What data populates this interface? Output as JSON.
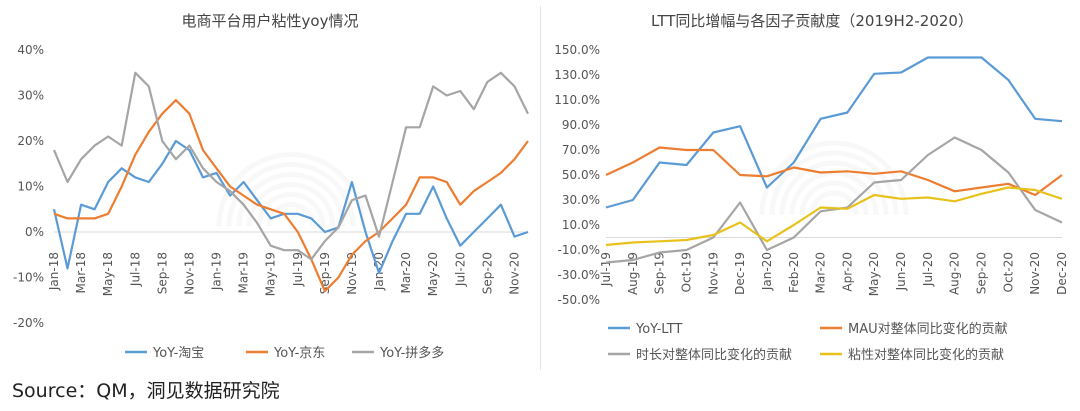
{
  "source": "Source：QM，洞见数据研究院",
  "chart_data": [
    {
      "type": "line",
      "title": "电商平台用户粘性yoy情况",
      "xlabel": "",
      "ylabel": "",
      "ylim": [
        -0.2,
        0.4
      ],
      "yticks": [
        "40%",
        "30%",
        "20%",
        "10%",
        "0%",
        "-10%",
        "-20%"
      ],
      "x_tick_labels": [
        "Jan-18",
        "Mar-18",
        "May-18",
        "Jul-18",
        "Sep-18",
        "Nov-18",
        "Jan-19",
        "Mar-19",
        "May-19",
        "Jul-19",
        "Sep-19",
        "Nov-19",
        "Jan-20",
        "Mar-20",
        "May-20",
        "Jul-20",
        "Sep-20",
        "Nov-20"
      ],
      "x_months": [
        "2018-01",
        "2018-02",
        "2018-03",
        "2018-04",
        "2018-05",
        "2018-06",
        "2018-07",
        "2018-08",
        "2018-09",
        "2018-10",
        "2018-11",
        "2018-12",
        "2019-01",
        "2019-02",
        "2019-03",
        "2019-04",
        "2019-05",
        "2019-06",
        "2019-07",
        "2019-08",
        "2019-09",
        "2019-10",
        "2019-11",
        "2019-12",
        "2020-01",
        "2020-02",
        "2020-03",
        "2020-04",
        "2020-05",
        "2020-06",
        "2020-07",
        "2020-08",
        "2020-09",
        "2020-10",
        "2020-11",
        "2020-12"
      ],
      "grid": false,
      "legend_position": "bottom",
      "series": [
        {
          "name": "YoY-淘宝",
          "color": "#5b9bd5",
          "values": [
            0.05,
            -0.08,
            0.06,
            0.05,
            0.11,
            0.14,
            0.12,
            0.11,
            0.15,
            0.2,
            0.18,
            0.12,
            0.13,
            0.08,
            0.11,
            0.07,
            0.03,
            0.04,
            0.04,
            0.03,
            0.0,
            0.01,
            0.11,
            0.0,
            -0.09,
            -0.02,
            0.04,
            0.04,
            0.1,
            0.03,
            -0.03,
            0.0,
            0.03,
            0.06,
            -0.01,
            0.0
          ]
        },
        {
          "name": "YoY-京东",
          "color": "#ed7d31",
          "values": [
            0.04,
            0.03,
            0.03,
            0.03,
            0.04,
            0.1,
            0.17,
            0.22,
            0.26,
            0.29,
            0.26,
            0.18,
            0.14,
            0.1,
            0.08,
            0.06,
            0.05,
            0.04,
            0.0,
            -0.06,
            -0.13,
            -0.1,
            -0.05,
            -0.02,
            0.0,
            0.03,
            0.06,
            0.12,
            0.12,
            0.11,
            0.06,
            0.09,
            0.11,
            0.13,
            0.16,
            0.2
          ]
        },
        {
          "name": "YoY-拼多多",
          "color": "#a5a5a5",
          "values": [
            0.18,
            0.11,
            0.16,
            0.19,
            0.21,
            0.19,
            0.35,
            0.32,
            0.2,
            0.16,
            0.19,
            0.14,
            0.11,
            0.09,
            0.06,
            0.02,
            -0.03,
            -0.04,
            -0.04,
            -0.06,
            -0.02,
            0.01,
            0.07,
            0.08,
            -0.01,
            0.11,
            0.23,
            0.23,
            0.32,
            0.3,
            0.31,
            0.27,
            0.33,
            0.35,
            0.32,
            0.26
          ]
        }
      ]
    },
    {
      "type": "line",
      "title": "LTT同比增幅与各因子贡献度（2019H2-2020）",
      "xlabel": "",
      "ylabel": "",
      "ylim": [
        -0.5,
        1.5
      ],
      "yticks": [
        "150.0%",
        "130.0%",
        "110.0%",
        "90.0%",
        "70.0%",
        "50.0%",
        "30.0%",
        "10.0%",
        "-10.0%",
        "-30.0%",
        "-50.0%"
      ],
      "categories": [
        "Jul-19",
        "Aug-19",
        "Sep-19",
        "Oct-19",
        "Nov-19",
        "Dec-19",
        "Jan-20",
        "Feb-20",
        "Mar-20",
        "Apr-20",
        "May-20",
        "Jun-20",
        "Jul-20",
        "Aug-20",
        "Sep-20",
        "Oct-20",
        "Nov-20",
        "Dec-20"
      ],
      "grid": false,
      "legend_position": "bottom",
      "series": [
        {
          "name": "YoY-LTT",
          "color": "#5b9bd5",
          "values": [
            0.24,
            0.3,
            0.6,
            0.58,
            0.84,
            0.89,
            0.4,
            0.6,
            0.95,
            1.0,
            1.31,
            1.32,
            1.44,
            1.44,
            1.44,
            1.26,
            0.95,
            0.93
          ]
        },
        {
          "name": "MAU对整体同比变化的贡献",
          "color": "#ed7d31",
          "values": [
            0.5,
            0.6,
            0.72,
            0.7,
            0.7,
            0.5,
            0.49,
            0.56,
            0.52,
            0.53,
            0.51,
            0.53,
            0.46,
            0.37,
            0.4,
            0.43,
            0.34,
            0.5
          ]
        },
        {
          "name": "时长对整体同比变化的贡献",
          "color": "#a5a5a5",
          "values": [
            -0.2,
            -0.18,
            -0.12,
            -0.1,
            0.0,
            0.28,
            -0.1,
            0.0,
            0.21,
            0.24,
            0.44,
            0.46,
            0.66,
            0.8,
            0.7,
            0.52,
            0.22,
            0.12
          ]
        },
        {
          "name": "粘性对整体同比变化的贡献",
          "color": "#e8c21a",
          "values": [
            -0.06,
            -0.04,
            -0.03,
            -0.02,
            0.02,
            0.12,
            -0.03,
            0.1,
            0.24,
            0.23,
            0.34,
            0.31,
            0.32,
            0.29,
            0.35,
            0.4,
            0.38,
            0.31
          ]
        }
      ]
    }
  ]
}
